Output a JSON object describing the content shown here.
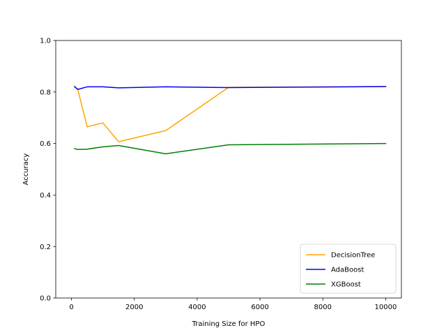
{
  "chart_data": {
    "type": "line",
    "title": "",
    "xlabel": "Training Size for HPO",
    "ylabel": "Accuracy",
    "xlim": [
      -500,
      10500
    ],
    "ylim": [
      0.0,
      1.0
    ],
    "xticks": [
      0,
      2000,
      4000,
      6000,
      8000,
      10000
    ],
    "yticks": [
      0.0,
      0.2,
      0.4,
      0.6,
      0.8,
      1.0
    ],
    "xtick_labels": [
      "0",
      "2000",
      "4000",
      "6000",
      "8000",
      "10000"
    ],
    "ytick_labels": [
      "0.0",
      "0.2",
      "0.4",
      "0.6",
      "0.8",
      "1.0"
    ],
    "grid": false,
    "legend_position": "lower-right",
    "series": [
      {
        "name": "DecisionTree",
        "color": "#ffa500",
        "x": [
          100,
          200,
          500,
          1000,
          1500,
          3000,
          5000,
          10000
        ],
        "y": [
          0.823,
          0.81,
          0.665,
          0.68,
          0.607,
          0.65,
          0.818,
          0.821
        ]
      },
      {
        "name": "AdaBoost",
        "color": "#0000ff",
        "x": [
          100,
          200,
          500,
          1000,
          1500,
          3000,
          5000,
          10000
        ],
        "y": [
          0.82,
          0.81,
          0.82,
          0.82,
          0.816,
          0.82,
          0.817,
          0.821
        ]
      },
      {
        "name": "XGBoost",
        "color": "#008000",
        "x": [
          100,
          200,
          500,
          1000,
          1500,
          3000,
          5000,
          10000
        ],
        "y": [
          0.58,
          0.577,
          0.578,
          0.587,
          0.592,
          0.56,
          0.595,
          0.6
        ]
      }
    ]
  }
}
